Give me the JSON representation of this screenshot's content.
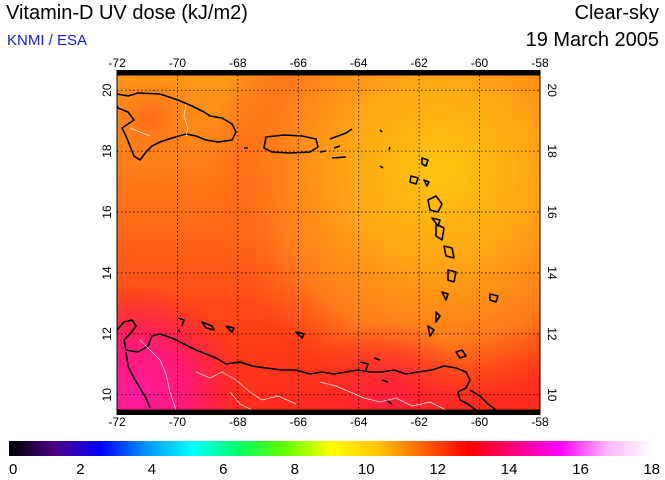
{
  "header": {
    "title": "Vitamin-D UV dose (kJ/m2)",
    "source": "KNMI / ESA",
    "sky": "Clear-sky",
    "date": "19 March 2005"
  },
  "map": {
    "lon_labels": [
      "-72",
      "-70",
      "-68",
      "-66",
      "-64",
      "-62",
      "-60",
      "-58"
    ],
    "lat_labels": [
      "20",
      "18",
      "16",
      "14",
      "12",
      "10"
    ],
    "lon_range": [
      -72,
      -58
    ],
    "lat_range": [
      9.5,
      20.5
    ],
    "grid": true
  },
  "colorbar": {
    "labels": [
      "0",
      "2",
      "4",
      "6",
      "8",
      "10",
      "12",
      "14",
      "16",
      "18"
    ],
    "range": [
      0,
      18
    ],
    "stops": [
      "#000000",
      "#4b0082",
      "#0000ff",
      "#0096ff",
      "#00ffff",
      "#00ff64",
      "#64ff00",
      "#ffff00",
      "#ffc800",
      "#ff6400",
      "#ff0000",
      "#ff0080",
      "#ff00ff",
      "#ffb4ff",
      "#ffffff"
    ]
  }
}
